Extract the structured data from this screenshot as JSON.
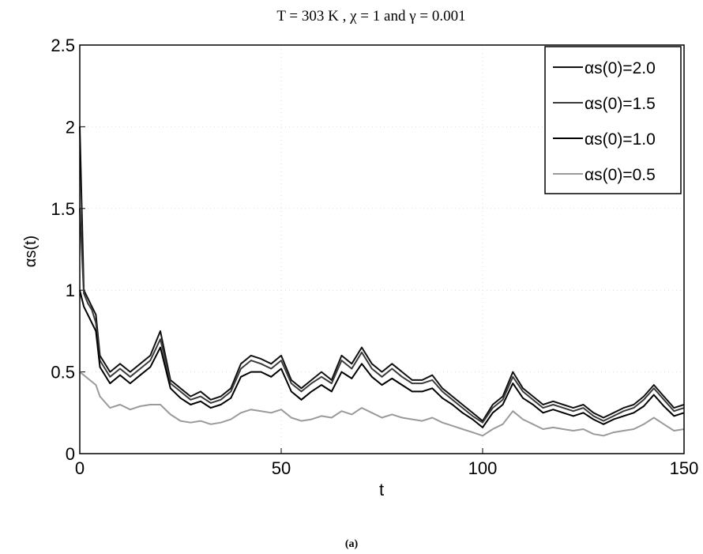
{
  "chart_data": {
    "type": "line",
    "title": "T = 303 K , χ = 1 and γ = 0.001",
    "x_label": "t",
    "y_label": "αs(t)",
    "caption": "(a)",
    "x": [
      0,
      1,
      2,
      3,
      4,
      5,
      7.5,
      10,
      12.5,
      15,
      17.5,
      20,
      22.5,
      25,
      27.5,
      30,
      32.5,
      35,
      37.5,
      40,
      42.5,
      45,
      47.5,
      50,
      52.5,
      55,
      57.5,
      60,
      62.5,
      65,
      67.5,
      70,
      72.5,
      75,
      77.5,
      80,
      82.5,
      85,
      87.5,
      90,
      92.5,
      95,
      97.5,
      100,
      102.5,
      105,
      107.5,
      110,
      112.5,
      115,
      117.5,
      120,
      122.5,
      125,
      127.5,
      130,
      132.5,
      135,
      137.5,
      140,
      142.5,
      145,
      147.5,
      150
    ],
    "series": [
      {
        "name": "αs(0)=2.0",
        "color": "#111111",
        "values": [
          2.0,
          1.0,
          0.95,
          0.9,
          0.85,
          0.6,
          0.5,
          0.55,
          0.5,
          0.55,
          0.6,
          0.75,
          0.45,
          0.4,
          0.35,
          0.38,
          0.33,
          0.35,
          0.4,
          0.55,
          0.6,
          0.58,
          0.55,
          0.6,
          0.45,
          0.4,
          0.45,
          0.5,
          0.45,
          0.6,
          0.55,
          0.65,
          0.55,
          0.5,
          0.55,
          0.5,
          0.45,
          0.45,
          0.48,
          0.4,
          0.35,
          0.3,
          0.25,
          0.2,
          0.3,
          0.35,
          0.5,
          0.4,
          0.35,
          0.3,
          0.32,
          0.3,
          0.28,
          0.3,
          0.25,
          0.22,
          0.25,
          0.28,
          0.3,
          0.35,
          0.42,
          0.35,
          0.28,
          0.3
        ]
      },
      {
        "name": "αs(0)=1.5",
        "color": "#3a3a3a",
        "values": [
          1.5,
          0.98,
          0.92,
          0.88,
          0.8,
          0.57,
          0.47,
          0.52,
          0.47,
          0.52,
          0.57,
          0.7,
          0.43,
          0.38,
          0.33,
          0.35,
          0.31,
          0.33,
          0.38,
          0.52,
          0.57,
          0.55,
          0.52,
          0.57,
          0.43,
          0.38,
          0.43,
          0.47,
          0.43,
          0.57,
          0.52,
          0.62,
          0.52,
          0.47,
          0.52,
          0.47,
          0.43,
          0.43,
          0.45,
          0.38,
          0.33,
          0.28,
          0.23,
          0.19,
          0.28,
          0.33,
          0.47,
          0.38,
          0.33,
          0.28,
          0.3,
          0.28,
          0.26,
          0.28,
          0.23,
          0.2,
          0.23,
          0.26,
          0.28,
          0.33,
          0.4,
          0.33,
          0.26,
          0.28
        ]
      },
      {
        "name": "αs(0)=1.0",
        "color": "#000000",
        "values": [
          1.0,
          0.9,
          0.85,
          0.8,
          0.75,
          0.53,
          0.43,
          0.48,
          0.43,
          0.48,
          0.53,
          0.65,
          0.4,
          0.34,
          0.3,
          0.32,
          0.28,
          0.3,
          0.34,
          0.47,
          0.5,
          0.5,
          0.47,
          0.52,
          0.38,
          0.33,
          0.38,
          0.42,
          0.38,
          0.5,
          0.46,
          0.55,
          0.47,
          0.42,
          0.46,
          0.42,
          0.38,
          0.38,
          0.4,
          0.34,
          0.3,
          0.25,
          0.21,
          0.16,
          0.25,
          0.3,
          0.43,
          0.34,
          0.3,
          0.25,
          0.27,
          0.25,
          0.23,
          0.25,
          0.21,
          0.18,
          0.21,
          0.23,
          0.25,
          0.29,
          0.36,
          0.29,
          0.23,
          0.25
        ]
      },
      {
        "name": "αs(0)=0.5",
        "color": "#9a9a9a",
        "values": [
          0.5,
          0.48,
          0.46,
          0.44,
          0.42,
          0.35,
          0.28,
          0.3,
          0.27,
          0.29,
          0.3,
          0.3,
          0.24,
          0.2,
          0.19,
          0.2,
          0.18,
          0.19,
          0.21,
          0.25,
          0.27,
          0.26,
          0.25,
          0.27,
          0.22,
          0.2,
          0.21,
          0.23,
          0.22,
          0.26,
          0.24,
          0.28,
          0.25,
          0.22,
          0.24,
          0.22,
          0.21,
          0.2,
          0.22,
          0.19,
          0.17,
          0.15,
          0.13,
          0.11,
          0.15,
          0.18,
          0.26,
          0.21,
          0.18,
          0.15,
          0.16,
          0.15,
          0.14,
          0.15,
          0.12,
          0.11,
          0.13,
          0.14,
          0.15,
          0.18,
          0.22,
          0.18,
          0.14,
          0.15
        ]
      }
    ],
    "xlim": [
      0,
      150
    ],
    "xticks": [
      0,
      50,
      100,
      150
    ],
    "ylim": [
      0,
      2.5
    ],
    "yticks": [
      0,
      0.5,
      1,
      1.5,
      2,
      2.5
    ],
    "grid": true,
    "legend": "upper right"
  }
}
